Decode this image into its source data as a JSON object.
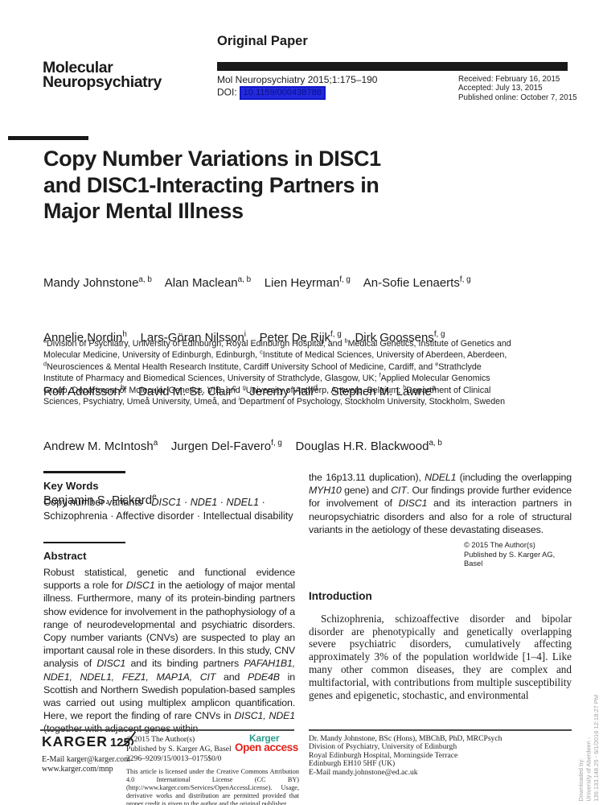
{
  "header": {
    "journal_name_line1": "Molecular",
    "journal_name_line2": "Neuropsychiatry",
    "section_label": "Original Paper",
    "citation": "Mol Neuropsychiatry 2015;1:175–190",
    "doi_label": "DOI:",
    "doi_value": "10.1159/000438788",
    "received": "Received: February 16, 2015",
    "accepted": "Accepted: July 13, 2015",
    "published_online": "Published online: October 7, 2015"
  },
  "article": {
    "title_lines": [
      "Copy Number Variations in DISC1",
      "and DISC1-Interacting Partners in",
      "Major Mental Illness"
    ],
    "author_lines": [
      [
        {
          "t": "Mandy Johnstone"
        },
        {
          "t": "a, b",
          "s": "sup"
        },
        {
          "t": "    "
        },
        {
          "t": "Alan Maclean"
        },
        {
          "t": "a, b",
          "s": "sup"
        },
        {
          "t": "    "
        },
        {
          "t": "Lien Heyrman"
        },
        {
          "t": "f, g",
          "s": "sup"
        },
        {
          "t": "    "
        },
        {
          "t": "An-Sofie Lenaerts"
        },
        {
          "t": "f, g",
          "s": "sup"
        }
      ],
      [
        {
          "t": "Annelie Nordin"
        },
        {
          "t": "h",
          "s": "sup"
        },
        {
          "t": "    "
        },
        {
          "t": "Lars-Göran Nilsson"
        },
        {
          "t": "i",
          "s": "sup"
        },
        {
          "t": "    "
        },
        {
          "t": "Peter De Rijk"
        },
        {
          "t": "f, g",
          "s": "sup"
        },
        {
          "t": "    "
        },
        {
          "t": "Dirk Goossens"
        },
        {
          "t": "f, g",
          "s": "sup"
        }
      ],
      [
        {
          "t": "Rolf Adolfsson"
        },
        {
          "t": "h",
          "s": "sup"
        },
        {
          "t": "    "
        },
        {
          "t": "David M. St. Clair"
        },
        {
          "t": "c",
          "s": "sup"
        },
        {
          "t": "    "
        },
        {
          "t": "Jeremy Hall"
        },
        {
          "t": "d",
          "s": "sup"
        },
        {
          "t": "    "
        },
        {
          "t": "Stephen M. Lawrie"
        },
        {
          "t": "a",
          "s": "sup"
        }
      ],
      [
        {
          "t": "Andrew M. McIntosh"
        },
        {
          "t": "a",
          "s": "sup"
        },
        {
          "t": "    "
        },
        {
          "t": "Jurgen Del-Favero"
        },
        {
          "t": "f, g",
          "s": "sup"
        },
        {
          "t": "    "
        },
        {
          "t": "Douglas H.R. Blackwood"
        },
        {
          "t": "a, b",
          "s": "sup"
        }
      ],
      [
        {
          "t": "Benjamin S. Pickard"
        },
        {
          "t": "e",
          "s": "sup"
        }
      ]
    ],
    "affiliations": [
      {
        "t": "a",
        "s": "sup"
      },
      {
        "t": "Division of Psychiatry, University of Edinburgh, Royal Edinburgh Hospital, and "
      },
      {
        "t": "b",
        "s": "sup"
      },
      {
        "t": "Medical Genetics, Institute of Genetics and Molecular Medicine, University of Edinburgh, Edinburgh, "
      },
      {
        "t": "c",
        "s": "sup"
      },
      {
        "t": "Institute of Medical Sciences, University of Aberdeen, Aberdeen, "
      },
      {
        "t": "d",
        "s": "sup"
      },
      {
        "t": "Neurosciences & Mental Health Research Institute, Cardiff University School of Medicine, Cardiff, and "
      },
      {
        "t": "e",
        "s": "sup"
      },
      {
        "t": "Strathclyde Institute of Pharmacy and Biomedical Sciences, University of Strathclyde, Glasgow, UK; "
      },
      {
        "t": "f",
        "s": "sup"
      },
      {
        "t": "Applied Molecular Genomics Group, Department of Molecular Genetics, VIB, and "
      },
      {
        "t": "g",
        "s": "sup"
      },
      {
        "t": "University of Antwerp, Antwerp, Belgium; "
      },
      {
        "t": "h",
        "s": "sup"
      },
      {
        "t": "Department of Clinical Sciences, Psychiatry, Umeå University, Umeå, and "
      },
      {
        "t": "i",
        "s": "sup"
      },
      {
        "t": "Department of Psychology, Stockholm University, Stockholm, Sweden"
      }
    ]
  },
  "keywords": {
    "heading": "Key Words",
    "body": [
      {
        "t": "Copy number variants · "
      },
      {
        "t": "DISC1",
        "s": "i"
      },
      {
        "t": " · "
      },
      {
        "t": "NDE1",
        "s": "i"
      },
      {
        "t": " · "
      },
      {
        "t": "NDEL1",
        "s": "i"
      },
      {
        "t": " · Schizophrenia · Affective disorder · Intellectual disability"
      }
    ]
  },
  "abstract": {
    "heading": "Abstract",
    "col1": [
      {
        "t": "Robust statistical, genetic and functional evidence supports a role for "
      },
      {
        "t": "DISC1",
        "s": "i"
      },
      {
        "t": " in the aetiology of major mental illness. Furthermore, many of its protein-binding partners show evidence for involvement in the pathophysiology of a range of neurodevelopmental and psychiatric disorders. Copy number variants (CNVs) are suspected to play an important causal role in these disorders. In this study, CNV analysis of "
      },
      {
        "t": "DISC1",
        "s": "i"
      },
      {
        "t": " and its binding partners "
      },
      {
        "t": "PAFAH1B1, NDE1, NDEL1, FEZ1, MAP1A, CIT",
        "s": "i"
      },
      {
        "t": " and "
      },
      {
        "t": "PDE4B",
        "s": "i"
      },
      {
        "t": " in Scottish and Northern Swedish population-based samples was carried out using multiplex amplicon quantification. Here, we report the finding of rare CNVs in "
      },
      {
        "t": "DISC1, NDE1",
        "s": "i"
      },
      {
        "t": " (together with adjacent genes within"
      }
    ],
    "col2": [
      {
        "t": "the 16p13.11 duplication), "
      },
      {
        "t": "NDEL1",
        "s": "i"
      },
      {
        "t": " (including the overlapping "
      },
      {
        "t": "MYH10",
        "s": "i"
      },
      {
        "t": " gene) and "
      },
      {
        "t": "CIT",
        "s": "i"
      },
      {
        "t": ". Our findings provide further evidence for involvement of "
      },
      {
        "t": "DISC1",
        "s": "i"
      },
      {
        "t": " and its interaction partners in neuropsychiatric disorders and also for a role of structural variants in the aetiology of these devastating diseases."
      }
    ],
    "copyright": "© 2015 The Author(s)",
    "publisher": "Published by S. Karger AG, Basel"
  },
  "introduction": {
    "heading": "Introduction",
    "paragraph": "Schizophrenia, schizoaffective disorder and bipolar disorder are phenotypically and genetically overlapping severe psychiatric disorders, cumulatively affecting approximately 3% of the population worldwide [1–4]. Like many other common diseases, they are complex and multifactorial, with contributions from multiple susceptibility genes and epigenetic, stochastic, and environmental"
  },
  "footer": {
    "karger_wordmark": "KARGER",
    "karger_125": "125",
    "email": "E-Mail karger@karger.com",
    "web": "www.karger.com/mnp",
    "copyright": "© 2015 The Author(s)",
    "publisher": "Published by S. Karger AG, Basel",
    "issn_code": "2296–9209/15/0013–0175$0/0",
    "license_text": "This article is licensed under the Creative Commons Attribution 4.0 International License (CC BY) (http://www.karger.com/Services/OpenAccessLicense). Usage, derivative works and distribution are permitted provided that proper credit is given to the author and the original publisher.",
    "open_access_line1": "Karger",
    "open_access_line2": "Open access",
    "contact_lines": [
      "Dr. Mandy Johnstone, BSc (Hons), MBChB, PhD, MRCPsych",
      "Division of Psychiatry, University of Edinburgh",
      "Royal Edinburgh Hospital, Morningside Terrace",
      "Edinburgh EH10 5HF (UK)",
      "E-Mail mandy.johnstone@ed.ac.uk"
    ]
  },
  "watermark": {
    "lines": [
      "Downloaded by:",
      "University of Aberdeen -",
      "139.133.148.25 - 6/1/2016 12:18:27 PM"
    ]
  },
  "colors": {
    "doi_highlight": "#2229de",
    "karger_teal": "#2e9c8f",
    "karger_red": "#e2231a",
    "header_bar": "#191919",
    "watermark_gray": "#a2a2a2"
  }
}
